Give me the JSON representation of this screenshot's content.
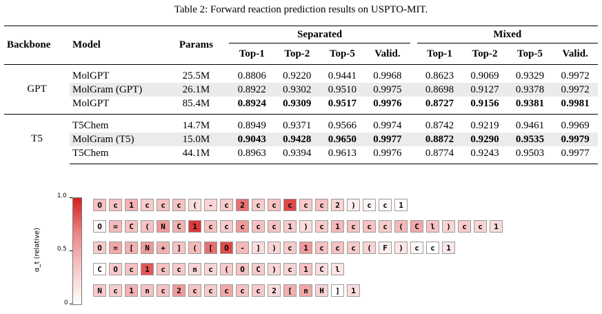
{
  "caption": "Table 2: Forward reaction prediction results on USPTO-MIT.",
  "table": {
    "headers": {
      "backbone": "Backbone",
      "model": "Model",
      "params": "Params",
      "group1": "Separated",
      "group2": "Mixed",
      "metrics": [
        "Top-1",
        "Top-2",
        "Top-5",
        "Valid.",
        "Top-1",
        "Top-2",
        "Top-5",
        "Valid."
      ]
    },
    "groups": [
      {
        "backbone": "GPT",
        "rows": [
          {
            "model": "MolGPT",
            "params": "25.5M",
            "values": [
              "0.8806",
              "0.9220",
              "0.9441",
              "0.9968",
              "0.8623",
              "0.9069",
              "0.9329",
              "0.9972"
            ],
            "shaded": false,
            "bold": false
          },
          {
            "model": "MolGram (GPT)",
            "params": "26.1M",
            "values": [
              "0.8922",
              "0.9302",
              "0.9510",
              "0.9975",
              "0.8698",
              "0.9127",
              "0.9378",
              "0.9972"
            ],
            "shaded": true,
            "bold": false
          },
          {
            "model": "MolGPT",
            "params": "85.4M",
            "values": [
              "0.8924",
              "0.9309",
              "0.9517",
              "0.9976",
              "0.8727",
              "0.9156",
              "0.9381",
              "0.9981"
            ],
            "shaded": false,
            "bold": true
          }
        ]
      },
      {
        "backbone": "T5",
        "rows": [
          {
            "model": "T5Chem",
            "params": "14.7M",
            "values": [
              "0.8949",
              "0.9371",
              "0.9566",
              "0.9974",
              "0.8742",
              "0.9219",
              "0.9461",
              "0.9969"
            ],
            "shaded": false,
            "bold": false
          },
          {
            "model": "MolGram (T5)",
            "params": "15.0M",
            "values": [
              "0.9043",
              "0.9428",
              "0.9650",
              "0.9977",
              "0.8872",
              "0.9290",
              "0.9535",
              "0.9979"
            ],
            "shaded": true,
            "bold": true
          },
          {
            "model": "T5Chem",
            "params": "44.1M",
            "values": [
              "0.8963",
              "0.9394",
              "0.9613",
              "0.9976",
              "0.8774",
              "0.9243",
              "0.9503",
              "0.9977"
            ],
            "shaded": false,
            "bold": false
          }
        ]
      }
    ]
  },
  "figure": {
    "colorbar_label": "α_t (relative)",
    "colorbar_ticks": [
      "1.0",
      "0.5",
      "0"
    ],
    "sequences": [
      {
        "tokens": [
          "O",
          "c",
          "1",
          "c",
          "c",
          "c",
          "(",
          "-",
          "c",
          "2",
          "c",
          "c",
          "c",
          "c",
          "c",
          "2",
          ")",
          "c",
          "c",
          "1"
        ],
        "weights": [
          0.35,
          0.35,
          0.45,
          0.3,
          0.35,
          0.35,
          0.2,
          0.25,
          0.3,
          0.7,
          0.3,
          0.35,
          0.85,
          0.3,
          0.35,
          0.25,
          0.1,
          0.05,
          0.05,
          0.0
        ]
      },
      {
        "tokens": [
          "O",
          "=",
          "C",
          "(",
          "N",
          "C",
          "1",
          "c",
          "c",
          "c",
          "c",
          "c",
          "1",
          ")",
          "c",
          "1",
          "c",
          "c",
          "c",
          "(",
          "C",
          "l",
          ")",
          "c",
          "c",
          "1"
        ],
        "weights": [
          0.05,
          0.4,
          0.35,
          0.35,
          0.55,
          0.45,
          0.9,
          0.35,
          0.3,
          0.55,
          0.35,
          0.35,
          0.3,
          0.2,
          0.3,
          0.4,
          0.35,
          0.35,
          0.3,
          0.4,
          0.5,
          0.35,
          0.25,
          0.3,
          0.25,
          0.2
        ]
      },
      {
        "tokens": [
          "O",
          "=",
          "[",
          "N",
          "+",
          "]",
          "(",
          "[",
          "O",
          "-",
          "]",
          ")",
          "c",
          "1",
          "c",
          "c",
          "c",
          "(",
          "F",
          ")",
          "c",
          "c",
          "1"
        ],
        "weights": [
          0.3,
          0.5,
          0.45,
          0.55,
          0.45,
          0.35,
          0.4,
          0.7,
          0.85,
          0.4,
          0.2,
          0.25,
          0.3,
          0.55,
          0.35,
          0.35,
          0.3,
          0.25,
          0.1,
          0.15,
          0.05,
          0.0,
          0.15
        ]
      },
      {
        "tokens": [
          "C",
          "O",
          "c",
          "1",
          "c",
          "c",
          "n",
          "c",
          "(",
          "O",
          "C",
          ")",
          "c",
          "1",
          "C",
          "l"
        ],
        "weights": [
          0.0,
          0.3,
          0.35,
          0.8,
          0.35,
          0.3,
          0.25,
          0.25,
          0.3,
          0.35,
          0.3,
          0.25,
          0.25,
          0.35,
          0.2,
          0.15
        ]
      },
      {
        "tokens": [
          "N",
          "c",
          "1",
          "n",
          "c",
          "2",
          "c",
          "c",
          "c",
          "c",
          "c",
          "2",
          "[",
          "n",
          "H",
          "]",
          "1"
        ],
        "weights": [
          0.3,
          0.3,
          0.45,
          0.35,
          0.35,
          0.55,
          0.35,
          0.3,
          0.5,
          0.35,
          0.3,
          0.2,
          0.45,
          0.5,
          0.25,
          0.0,
          0.2
        ]
      }
    ]
  }
}
